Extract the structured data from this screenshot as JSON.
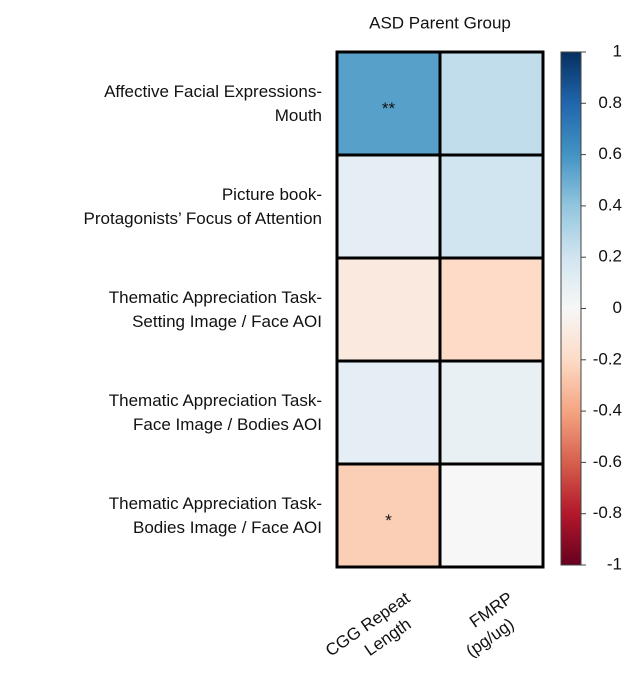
{
  "chart_data": {
    "type": "heatmap",
    "title": "ASD Parent Group",
    "rows": [
      [
        "Affective Facial Expressions-",
        "Mouth"
      ],
      [
        "Picture book-",
        "Protagonists’ Focus of Attention"
      ],
      [
        "Thematic Appreciation Task-",
        "Setting Image / Face AOI"
      ],
      [
        "Thematic Appreciation Task-",
        "Face Image / Bodies AOI"
      ],
      [
        "Thematic Appreciation Task-",
        "Bodies Image / Face AOI"
      ]
    ],
    "columns": [
      [
        "CGG Repeat",
        "Length"
      ],
      [
        "FMRP",
        "(pg/ug)"
      ]
    ],
    "values": [
      [
        0.55,
        0.25
      ],
      [
        0.1,
        0.2
      ],
      [
        -0.1,
        -0.2
      ],
      [
        0.1,
        0.08
      ],
      [
        -0.25,
        0.0
      ]
    ],
    "cell_labels": [
      [
        "**",
        null
      ],
      [
        null,
        null
      ],
      [
        null,
        null
      ],
      [
        null,
        null
      ],
      [
        "*",
        null
      ]
    ],
    "colormap": "RdBu",
    "clim": [
      -1,
      1
    ],
    "colorbar_ticks": [
      1,
      0.8,
      0.6,
      0.4,
      0.2,
      0,
      -0.2,
      -0.4,
      -0.6,
      -0.8,
      -1
    ]
  }
}
